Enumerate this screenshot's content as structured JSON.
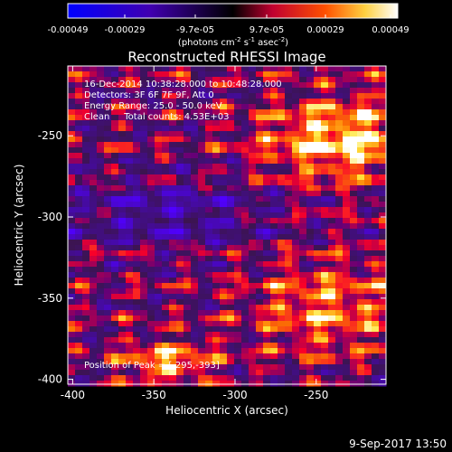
{
  "chart_data": {
    "type": "heatmap",
    "title": "Reconstructed RHESSI Image",
    "xlabel": "Heliocentric X (arcsec)",
    "ylabel": "Heliocentric Y (arcsec)",
    "xlim": [
      -403,
      -207
    ],
    "ylim": [
      -403,
      -207
    ],
    "xticks": [
      -400,
      -350,
      -300,
      -250
    ],
    "yticks": [
      -400,
      -350,
      -300,
      -250
    ],
    "colorbar": {
      "ticks": [
        "-0.00049",
        "-0.00029",
        "-9.7e-05",
        "9.7e-05",
        "0.00029",
        "0.00049"
      ],
      "range": [
        -0.00049,
        0.00049
      ],
      "unit_text": "(photons cm",
      "unit_sup1": "-2",
      "unit_mid": " s",
      "unit_sup2": "-1",
      "unit_end": " asec",
      "unit_sup3": "-2",
      "unit_close": ")"
    },
    "annotations": {
      "time": "16-Dec-2014 10:38:28.000 to 10:48:28.000",
      "detectors": "Detectors: 3F 6F 7F 9F, Att 0",
      "energy": "Energy Range: 25.0 - 50.0 keV",
      "clean": "Clean     Total counts: 4.53E+03",
      "peak": "Position of Peak = [-295,-393]"
    },
    "footer": "9-Sep-2017 13:50",
    "grid": false,
    "colors": {
      "background": "#000000",
      "negative": "#0000ff",
      "zero": "#000000",
      "positive_mid": "#ff0000",
      "positive_high": "#ffffff"
    }
  }
}
